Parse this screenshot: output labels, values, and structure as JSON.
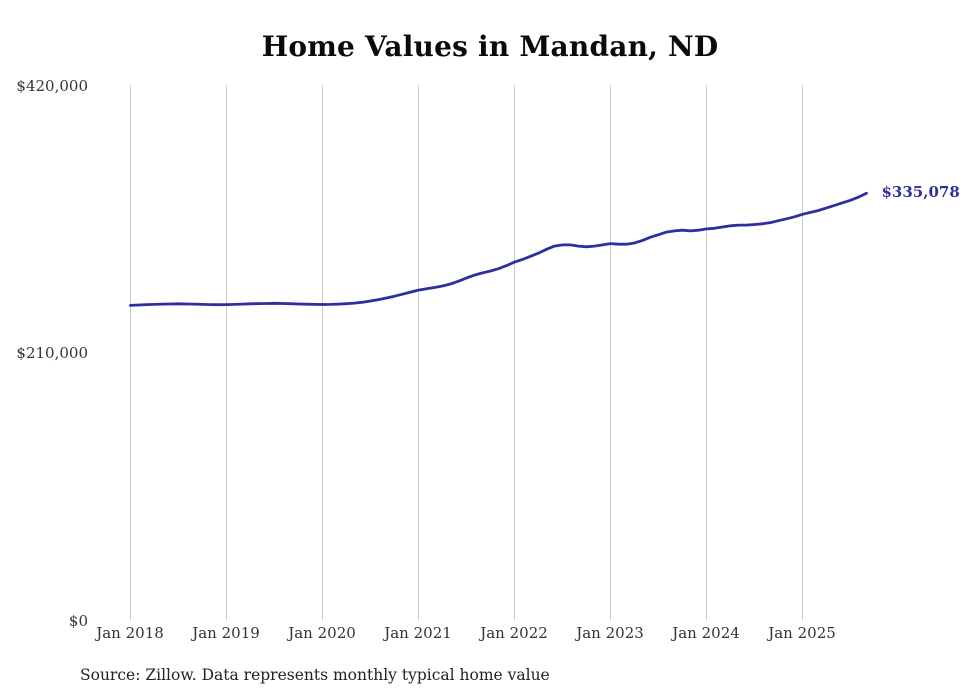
{
  "title": "Home Values in Mandan, ND",
  "source_note": "Source: Zillow. Data represents monthly typical home value",
  "chart_data": {
    "type": "line",
    "title": "Home Values in Mandan, ND",
    "series_name": "Typical home value (monthly)",
    "frequency": "monthly",
    "start": "Jan 2018",
    "end": "Sep 2025",
    "x_tick_labels": [
      "Jan 2018",
      "Jan 2019",
      "Jan 2020",
      "Jan 2021",
      "Jan 2022",
      "Jan 2023",
      "Jan 2024",
      "Jan 2025"
    ],
    "y_tick_labels": [
      "$0",
      "$210,000",
      "$420,000"
    ],
    "ylim": [
      0,
      420000
    ],
    "grid": "vertical-only",
    "legend": "none",
    "latest_value": 335078,
    "end_label": "$335,078",
    "line_color": "#2d2f9e",
    "grid_color": "#cccccc",
    "values": [
      247000,
      247300,
      247600,
      247800,
      248000,
      248100,
      248200,
      248100,
      248000,
      247800,
      247600,
      247500,
      247600,
      247800,
      248000,
      248200,
      248400,
      248500,
      248600,
      248500,
      248300,
      248100,
      247900,
      247800,
      247700,
      247800,
      248000,
      248300,
      248800,
      249500,
      250400,
      251500,
      252800,
      254200,
      255800,
      257400,
      259000,
      260000,
      261000,
      262200,
      263800,
      266000,
      268500,
      270800,
      272500,
      274000,
      275800,
      278200,
      281000,
      283000,
      285500,
      288000,
      291000,
      293500,
      294500,
      294500,
      293500,
      293000,
      293500,
      294500,
      295500,
      295000,
      295000,
      296000,
      298000,
      300500,
      302500,
      304500,
      305500,
      306000,
      305500,
      306000,
      307000,
      307500,
      308500,
      309500,
      310000,
      310000,
      310500,
      311000,
      312000,
      313500,
      315000,
      316500,
      318500,
      320000,
      321500,
      323500,
      325500,
      327500,
      329500,
      332000,
      335078
    ]
  }
}
